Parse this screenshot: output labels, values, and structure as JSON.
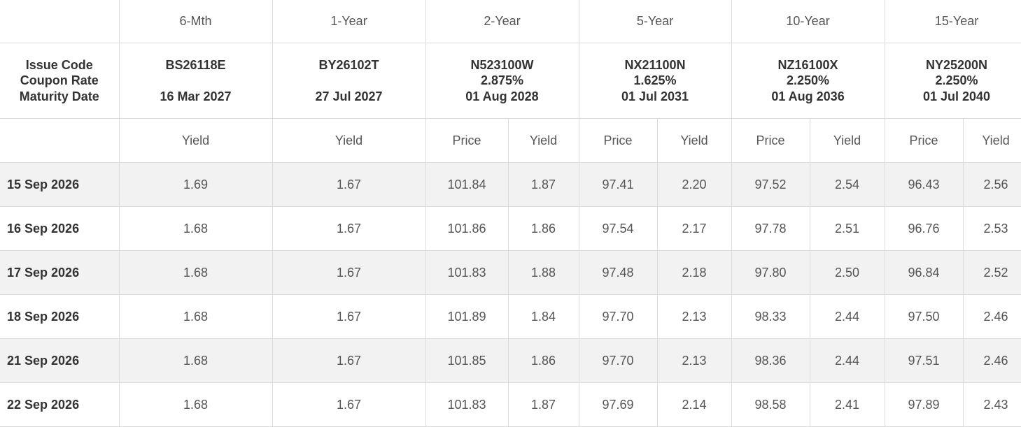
{
  "header": {
    "tenors": [
      "6-Mth",
      "1-Year",
      "2-Year",
      "5-Year",
      "10-Year",
      "15-Year"
    ],
    "label_lines": [
      "Issue Code",
      "Coupon Rate",
      "Maturity Date"
    ],
    "issues": [
      {
        "code": "BS26118E",
        "coupon": "",
        "maturity": "16 Mar 2027"
      },
      {
        "code": "BY26102T",
        "coupon": "",
        "maturity": "27 Jul 2027"
      },
      {
        "code": "N523100W",
        "coupon": "2.875%",
        "maturity": "01 Aug 2028"
      },
      {
        "code": "NX21100N",
        "coupon": "1.625%",
        "maturity": "01 Jul 2031"
      },
      {
        "code": "NZ16100X",
        "coupon": "2.250%",
        "maturity": "01 Aug 2036"
      },
      {
        "code": "NY25200N",
        "coupon": "2.250%",
        "maturity": "01 Jul 2040"
      }
    ],
    "subheaders": [
      "Yield",
      "Yield",
      "Price",
      "Yield",
      "Price",
      "Yield",
      "Price",
      "Yield",
      "Price",
      "Yield"
    ]
  },
  "rows": [
    {
      "date": "15 Sep 2026",
      "values": [
        "1.69",
        "1.67",
        "101.84",
        "1.87",
        "97.41",
        "2.20",
        "97.52",
        "2.54",
        "96.43",
        "2.56"
      ]
    },
    {
      "date": "16 Sep 2026",
      "values": [
        "1.68",
        "1.67",
        "101.86",
        "1.86",
        "97.54",
        "2.17",
        "97.78",
        "2.51",
        "96.76",
        "2.53"
      ]
    },
    {
      "date": "17 Sep 2026",
      "values": [
        "1.68",
        "1.67",
        "101.83",
        "1.88",
        "97.48",
        "2.18",
        "97.80",
        "2.50",
        "96.84",
        "2.52"
      ]
    },
    {
      "date": "18 Sep 2026",
      "values": [
        "1.68",
        "1.67",
        "101.89",
        "1.84",
        "97.70",
        "2.13",
        "98.33",
        "2.44",
        "97.50",
        "2.46"
      ]
    },
    {
      "date": "21 Sep 2026",
      "values": [
        "1.68",
        "1.67",
        "101.85",
        "1.86",
        "97.70",
        "2.13",
        "98.36",
        "2.44",
        "97.51",
        "2.46"
      ]
    },
    {
      "date": "22 Sep 2026",
      "values": [
        "1.68",
        "1.67",
        "101.83",
        "1.87",
        "97.69",
        "2.14",
        "98.58",
        "2.41",
        "97.89",
        "2.43"
      ]
    }
  ]
}
